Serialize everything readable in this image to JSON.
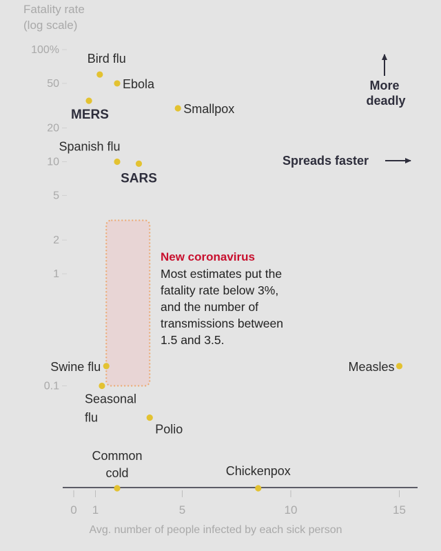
{
  "chart_data": {
    "type": "scatter",
    "ylabel_lines": [
      "Fatality rate",
      "(log scale)"
    ],
    "xlabel": "Avg. number of people infected by each sick person",
    "x_ticks": [
      0,
      1,
      5,
      10,
      15
    ],
    "y_ticks": [
      {
        "value": 100,
        "label": "100%"
      },
      {
        "value": 50,
        "label": "50"
      },
      {
        "value": 20,
        "label": "20"
      },
      {
        "value": 10,
        "label": "10"
      },
      {
        "value": 5,
        "label": "5"
      },
      {
        "value": 2,
        "label": "2"
      },
      {
        "value": 1,
        "label": "1"
      },
      {
        "value": 0.1,
        "label": "0.1"
      }
    ],
    "xlim": [
      -0.5,
      15.5
    ],
    "ylim_log": [
      0.04,
      100
    ],
    "points": [
      {
        "name": "Bird flu",
        "x": 1.2,
        "y": 60,
        "lines": [
          "Bird flu"
        ],
        "bold": false,
        "anchor": "middle",
        "dx": 10,
        "dy": -17
      },
      {
        "name": "Ebola",
        "x": 2.0,
        "y": 50,
        "lines": [
          "Ebola"
        ],
        "bold": false,
        "anchor": "start",
        "dx": 8,
        "dy": 7
      },
      {
        "name": "MERS",
        "x": 0.7,
        "y": 35,
        "lines": [
          "MERS"
        ],
        "bold": true,
        "anchor": "start",
        "dx": -26,
        "dy": 26
      },
      {
        "name": "Smallpox",
        "x": 4.8,
        "y": 30,
        "lines": [
          "Smallpox"
        ],
        "bold": false,
        "anchor": "start",
        "dx": 8,
        "dy": 7
      },
      {
        "name": "Spanish flu",
        "x": 2.0,
        "y": 10,
        "lines": [
          "Spanish flu"
        ],
        "bold": false,
        "anchor": "middle",
        "dx": -40,
        "dy": -16
      },
      {
        "name": "SARS",
        "x": 3.0,
        "y": 9.6,
        "lines": [
          "SARS"
        ],
        "bold": true,
        "anchor": "middle",
        "dx": 0,
        "dy": 27
      },
      {
        "name": "Swine flu",
        "x": 1.5,
        "y": 0.15,
        "lines": [
          "Swine flu"
        ],
        "bold": false,
        "anchor": "end",
        "dx": -8,
        "dy": 7
      },
      {
        "name": "Seasonal flu",
        "x": 1.3,
        "y": 0.1,
        "lines": [
          "Seasonal",
          "flu"
        ],
        "bold": false,
        "anchor": "start",
        "dx": -25,
        "dy": 25
      },
      {
        "name": "Polio",
        "x": 3.5,
        "y": 0.052,
        "lines": [
          "Polio"
        ],
        "bold": false,
        "anchor": "start",
        "dx": 8,
        "dy": 23
      },
      {
        "name": "Measles",
        "x": 15,
        "y": 0.15,
        "lines": [
          "Measles"
        ],
        "bold": false,
        "anchor": "end",
        "dx": -7,
        "dy": 7
      }
    ],
    "baseline_points": [
      {
        "name": "Common cold",
        "x": 2.0,
        "lines": [
          "Common",
          "cold"
        ],
        "anchor": "middle",
        "dx": 0,
        "dy": -40
      },
      {
        "name": "Chickenpox",
        "x": 8.5,
        "lines": [
          "Chickenpox"
        ],
        "anchor": "middle",
        "dx": 0,
        "dy": -18
      }
    ],
    "highlight": {
      "x_range": [
        1.5,
        3.5
      ],
      "y_range": [
        0.1,
        3
      ],
      "title": "New coronavirus",
      "body_lines": [
        "Most estimates put the",
        "fatality rate below 3%,",
        "and the number of",
        "transmissions between",
        "1.5 and 3.5."
      ]
    },
    "annotations": {
      "deadly_lines": [
        "More",
        "deadly"
      ],
      "faster_label": "Spreads faster"
    },
    "colors": {
      "point": "#e3c231",
      "highlight_fill": "#e8d5d5",
      "highlight_border": "#eca86f",
      "coronavirus": "#c8102e"
    }
  }
}
